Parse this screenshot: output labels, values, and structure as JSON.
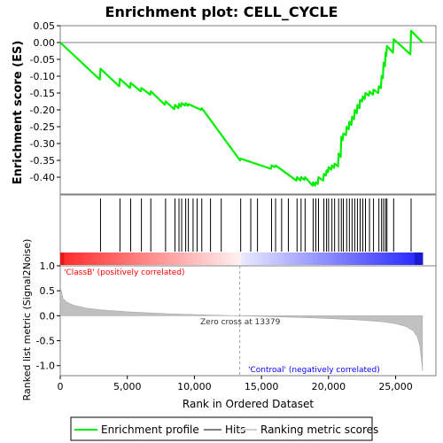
{
  "chart_data": {
    "type": "line",
    "title": "Enrichment plot: CELL_CYCLE",
    "es_panel": {
      "ylabel": "Enrichment score (ES)",
      "ylim": [
        -0.45,
        0.05
      ],
      "yticks": [
        0.05,
        0.0,
        -0.05,
        -0.1,
        -0.15,
        -0.2,
        -0.25,
        -0.3,
        -0.35,
        -0.4
      ],
      "ytick_labels": [
        "0.05",
        "0.00",
        "-0.05",
        "-0.10",
        "-0.15",
        "-0.20",
        "-0.25",
        "-0.30",
        "-0.35",
        "-0.40"
      ],
      "series": [
        {
          "name": "Enrichment profile",
          "color": "#00ee00",
          "x": [
            0,
            2950,
            3000,
            4400,
            4450,
            5200,
            5250,
            6000,
            6050,
            6700,
            6750,
            7800,
            7850,
            8500,
            8550,
            8800,
            8850,
            9000,
            9050,
            9300,
            9350,
            9500,
            9550,
            10500,
            10550,
            13400,
            13450,
            15700,
            15750,
            16000,
            16050,
            17600,
            17650,
            17900,
            17950,
            18200,
            18250,
            18800,
            18850,
            19000,
            19050,
            19200,
            19250,
            19600,
            19650,
            19800,
            19850,
            19950,
            20000,
            20200,
            20250,
            20400,
            20450,
            20700,
            20750,
            20900,
            20950,
            21050,
            21100,
            21300,
            21350,
            21500,
            21550,
            21700,
            21750,
            21900,
            21950,
            22100,
            22150,
            22300,
            22350,
            22500,
            22550,
            22700,
            22750,
            23000,
            23050,
            23300,
            23350,
            23700,
            23750,
            23900,
            23950,
            24050,
            24100,
            24200,
            24250,
            24300,
            24350,
            24800,
            24850,
            26100,
            26150,
            27000
          ],
          "y": [
            0.0,
            -0.11,
            -0.078,
            -0.13,
            -0.108,
            -0.135,
            -0.12,
            -0.145,
            -0.135,
            -0.155,
            -0.145,
            -0.185,
            -0.175,
            -0.198,
            -0.185,
            -0.195,
            -0.182,
            -0.19,
            -0.18,
            -0.187,
            -0.18,
            -0.188,
            -0.183,
            -0.2,
            -0.195,
            -0.35,
            -0.345,
            -0.375,
            -0.365,
            -0.37,
            -0.365,
            -0.41,
            -0.4,
            -0.41,
            -0.4,
            -0.408,
            -0.4,
            -0.425,
            -0.415,
            -0.425,
            -0.415,
            -0.42,
            -0.4,
            -0.41,
            -0.39,
            -0.395,
            -0.38,
            -0.385,
            -0.37,
            -0.378,
            -0.365,
            -0.372,
            -0.36,
            -0.368,
            -0.33,
            -0.34,
            -0.28,
            -0.29,
            -0.27,
            -0.275,
            -0.25,
            -0.258,
            -0.235,
            -0.245,
            -0.22,
            -0.228,
            -0.2,
            -0.21,
            -0.185,
            -0.195,
            -0.17,
            -0.175,
            -0.16,
            -0.168,
            -0.15,
            -0.158,
            -0.145,
            -0.155,
            -0.14,
            -0.15,
            -0.13,
            -0.135,
            -0.1,
            -0.105,
            -0.06,
            -0.07,
            -0.03,
            -0.04,
            -0.01,
            -0.03,
            0.01,
            -0.035,
            0.035,
            0.0
          ]
        }
      ],
      "zero_line": 0.0
    },
    "hits": {
      "name": "Hits",
      "x": [
        3000,
        4450,
        5250,
        6050,
        6750,
        7850,
        8550,
        8850,
        9050,
        9350,
        9550,
        9900,
        10200,
        10550,
        11200,
        12000,
        13450,
        14200,
        14700,
        15750,
        16050,
        16500,
        17000,
        17650,
        17950,
        18250,
        18850,
        19050,
        19250,
        19650,
        19850,
        20000,
        20250,
        20450,
        20750,
        20950,
        21100,
        21350,
        21550,
        21750,
        21950,
        22150,
        22350,
        22550,
        22750,
        23050,
        23350,
        23750,
        23950,
        24100,
        24250,
        24350,
        24850,
        26150
      ]
    },
    "ranked_panel": {
      "ylabel": "Ranked list metric (Signal2Noise)",
      "ylim": [
        -1.2,
        1.0
      ],
      "yticks": [
        1.0,
        0.5,
        0.0,
        -0.5,
        -1.0
      ],
      "ytick_labels": [
        "1.0",
        "0.5",
        "0.0",
        "-0.5",
        "-1.0"
      ],
      "curve_x": [
        0,
        200,
        500,
        1000,
        2000,
        3000,
        5000,
        8000,
        11000,
        13379,
        16000,
        19000,
        22000,
        24000,
        25000,
        25800,
        26300,
        26600,
        26800,
        26950,
        27000
      ],
      "curve_y": [
        0.6,
        0.35,
        0.27,
        0.21,
        0.15,
        0.12,
        0.08,
        0.04,
        0.015,
        0.0,
        -0.02,
        -0.045,
        -0.08,
        -0.12,
        -0.16,
        -0.22,
        -0.3,
        -0.42,
        -0.6,
        -0.95,
        -1.1
      ],
      "color": "#c0c0c0",
      "zero_cross_label": "Zero cross at 13379",
      "zero_cross_x": 13379,
      "pos_label": "'ClassB' (positively correlated)",
      "pos_color": "#ff0000",
      "neg_label": "'Controal' (negatively correlated)",
      "neg_color": "#0000ff"
    },
    "xaxis": {
      "xlabel": "Rank in Ordered Dataset",
      "xlim": [
        0,
        28000
      ],
      "xticks": [
        0,
        5000,
        10000,
        15000,
        20000,
        25000
      ],
      "xtick_labels": [
        "0",
        "5,000",
        "10,000",
        "15,000",
        "20,000",
        "25,000"
      ],
      "data_end": 27000
    },
    "legend": {
      "placement": "bottom",
      "items": [
        {
          "label": "Enrichment profile",
          "color": "#00ee00",
          "kind": "line"
        },
        {
          "label": "Hits",
          "color": "#808080",
          "kind": "line"
        },
        {
          "label": "Ranking metric scores",
          "color": "#d0d0d0",
          "kind": "line"
        }
      ]
    }
  }
}
